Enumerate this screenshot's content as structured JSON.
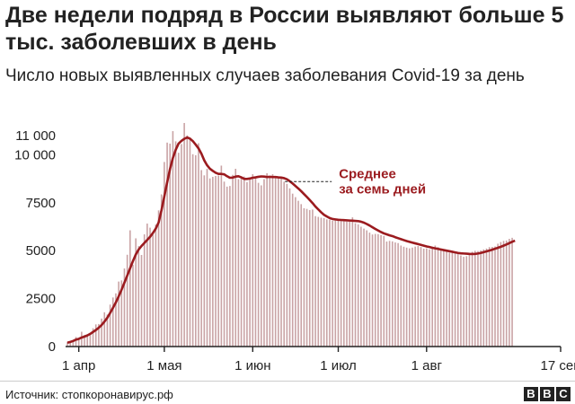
{
  "title": "Две недели подряд в России выявляют больше 5 тыс. заболевших в день",
  "subtitle": "Число новых выявленных случаев заболевания Covid-19 за день",
  "source": "Источник: стопкоронавирус.рф",
  "logo": [
    "B",
    "B",
    "C"
  ],
  "colors": {
    "bars": "#c9a3a5",
    "average_line": "#9b1b1f",
    "axis": "#222222",
    "text": "#222222"
  },
  "chart_data": {
    "type": "bar",
    "title": "Две недели подряд в России выявляют больше 5 тыс. заболевших в день",
    "subtitle": "Число новых выявленных случаев заболевания Covid-19 за день",
    "xlabel": "",
    "ylabel": "",
    "xlim": [
      "2020-03-28",
      "2020-09-17"
    ],
    "ylim": [
      0,
      11000
    ],
    "yticks": [
      {
        "value": 0,
        "label": "0"
      },
      {
        "value": 2500,
        "label": "2500"
      },
      {
        "value": 5000,
        "label": "5000"
      },
      {
        "value": 7500,
        "label": "7500"
      },
      {
        "value": 10000,
        "label": "10 000"
      },
      {
        "value": 11000,
        "label": "11 000"
      }
    ],
    "xticks": [
      {
        "date": "2020-04-01",
        "label": "1 апр"
      },
      {
        "date": "2020-05-01",
        "label": "1 мая"
      },
      {
        "date": "2020-06-01",
        "label": "1 июн"
      },
      {
        "date": "2020-07-01",
        "label": "1 июл"
      },
      {
        "date": "2020-08-01",
        "label": "1 авг"
      },
      {
        "date": "2020-09-17",
        "label": "17 сен"
      }
    ],
    "grid": false,
    "annotation": {
      "text": [
        "Среднее",
        "за семь дней"
      ],
      "date": "2020-06-18",
      "value": 8600
    },
    "series": [
      {
        "type": "bar",
        "start_date": "2020-03-28",
        "values": [
          228,
          270,
          302,
          501,
          440,
          771,
          601,
          582,
          658,
          954,
          1154,
          1175,
          1459,
          1786,
          1667,
          2186,
          2558,
          2774,
          3388,
          3448,
          4070,
          4785,
          6060,
          4268,
          5642,
          5236,
          4774,
          5849,
          6411,
          6198,
          5841,
          6361,
          7099,
          7933,
          9623,
          10633,
          10581,
          11231,
          10699,
          10102,
          10559,
          11656,
          11012,
          10899,
          10028,
          9974,
          10598,
          9200,
          8926,
          9263,
          8764,
          8849,
          8894,
          8915,
          9434,
          8599,
          8338,
          8371,
          8952,
          9268,
          8726,
          8868,
          8863,
          8572,
          8779,
          8985,
          8831,
          8536,
          8404,
          8726,
          9035,
          8835,
          8985,
          8858,
          8855,
          8779,
          8595,
          8484,
          8246,
          7972,
          7790,
          7600,
          7425,
          7212,
          7176,
          7113,
          7143,
          6800,
          6760,
          6719,
          6693,
          6632,
          6611,
          6562,
          6615,
          6556,
          6635,
          6537,
          6509,
          6611,
          6736,
          6428,
          6368,
          6248,
          6150,
          6060,
          5940,
          5842,
          5871,
          5862,
          5811,
          5765,
          5475,
          5509,
          5482,
          5427,
          5395,
          5267,
          5204,
          5159,
          5118,
          5159,
          5212,
          5241,
          5189,
          5102,
          5118,
          5065,
          5212,
          5267,
          5189,
          5065,
          5009,
          4969,
          4892,
          4945,
          4921,
          4828,
          4748,
          4676,
          4711,
          4870,
          4941,
          4993,
          4980,
          5009,
          5065,
          5110,
          5185,
          5195,
          5218,
          5363,
          5449,
          5509,
          5529,
          5615,
          5670
        ]
      },
      {
        "type": "line",
        "name": "Среднее за семь дней",
        "start_date": "2020-03-28",
        "values": [
          200,
          240,
          290,
          360,
          400,
          470,
          520,
          580,
          660,
          760,
          860,
          980,
          1120,
          1300,
          1500,
          1750,
          2020,
          2300,
          2620,
          2960,
          3330,
          3700,
          4080,
          4460,
          4800,
          5060,
          5240,
          5400,
          5560,
          5720,
          5920,
          6150,
          6470,
          7100,
          7830,
          8560,
          9260,
          9830,
          10260,
          10580,
          10720,
          10830,
          10900,
          10840,
          10710,
          10530,
          10330,
          10060,
          9710,
          9450,
          9270,
          9160,
          9060,
          9000,
          9000,
          8980,
          8880,
          8800,
          8810,
          8860,
          8880,
          8820,
          8740,
          8740,
          8760,
          8800,
          8820,
          8850,
          8870,
          8860,
          8840,
          8850,
          8840,
          8840,
          8820,
          8810,
          8780,
          8720,
          8620,
          8500,
          8370,
          8240,
          8100,
          7950,
          7800,
          7640,
          7480,
          7300,
          7150,
          7000,
          6870,
          6780,
          6700,
          6650,
          6630,
          6610,
          6600,
          6590,
          6580,
          6570,
          6560,
          6550,
          6540,
          6510,
          6460,
          6390,
          6310,
          6220,
          6130,
          6050,
          5970,
          5900,
          5850,
          5800,
          5760,
          5700,
          5650,
          5600,
          5550,
          5500,
          5460,
          5420,
          5380,
          5340,
          5300,
          5260,
          5220,
          5190,
          5150,
          5120,
          5090,
          5060,
          5030,
          5000,
          4970,
          4940,
          4910,
          4880,
          4860,
          4850,
          4840,
          4830,
          4825,
          4830,
          4850,
          4880,
          4920,
          4960,
          5000,
          5050,
          5100,
          5150,
          5200,
          5260,
          5320,
          5390,
          5460,
          5520
        ]
      }
    ]
  }
}
